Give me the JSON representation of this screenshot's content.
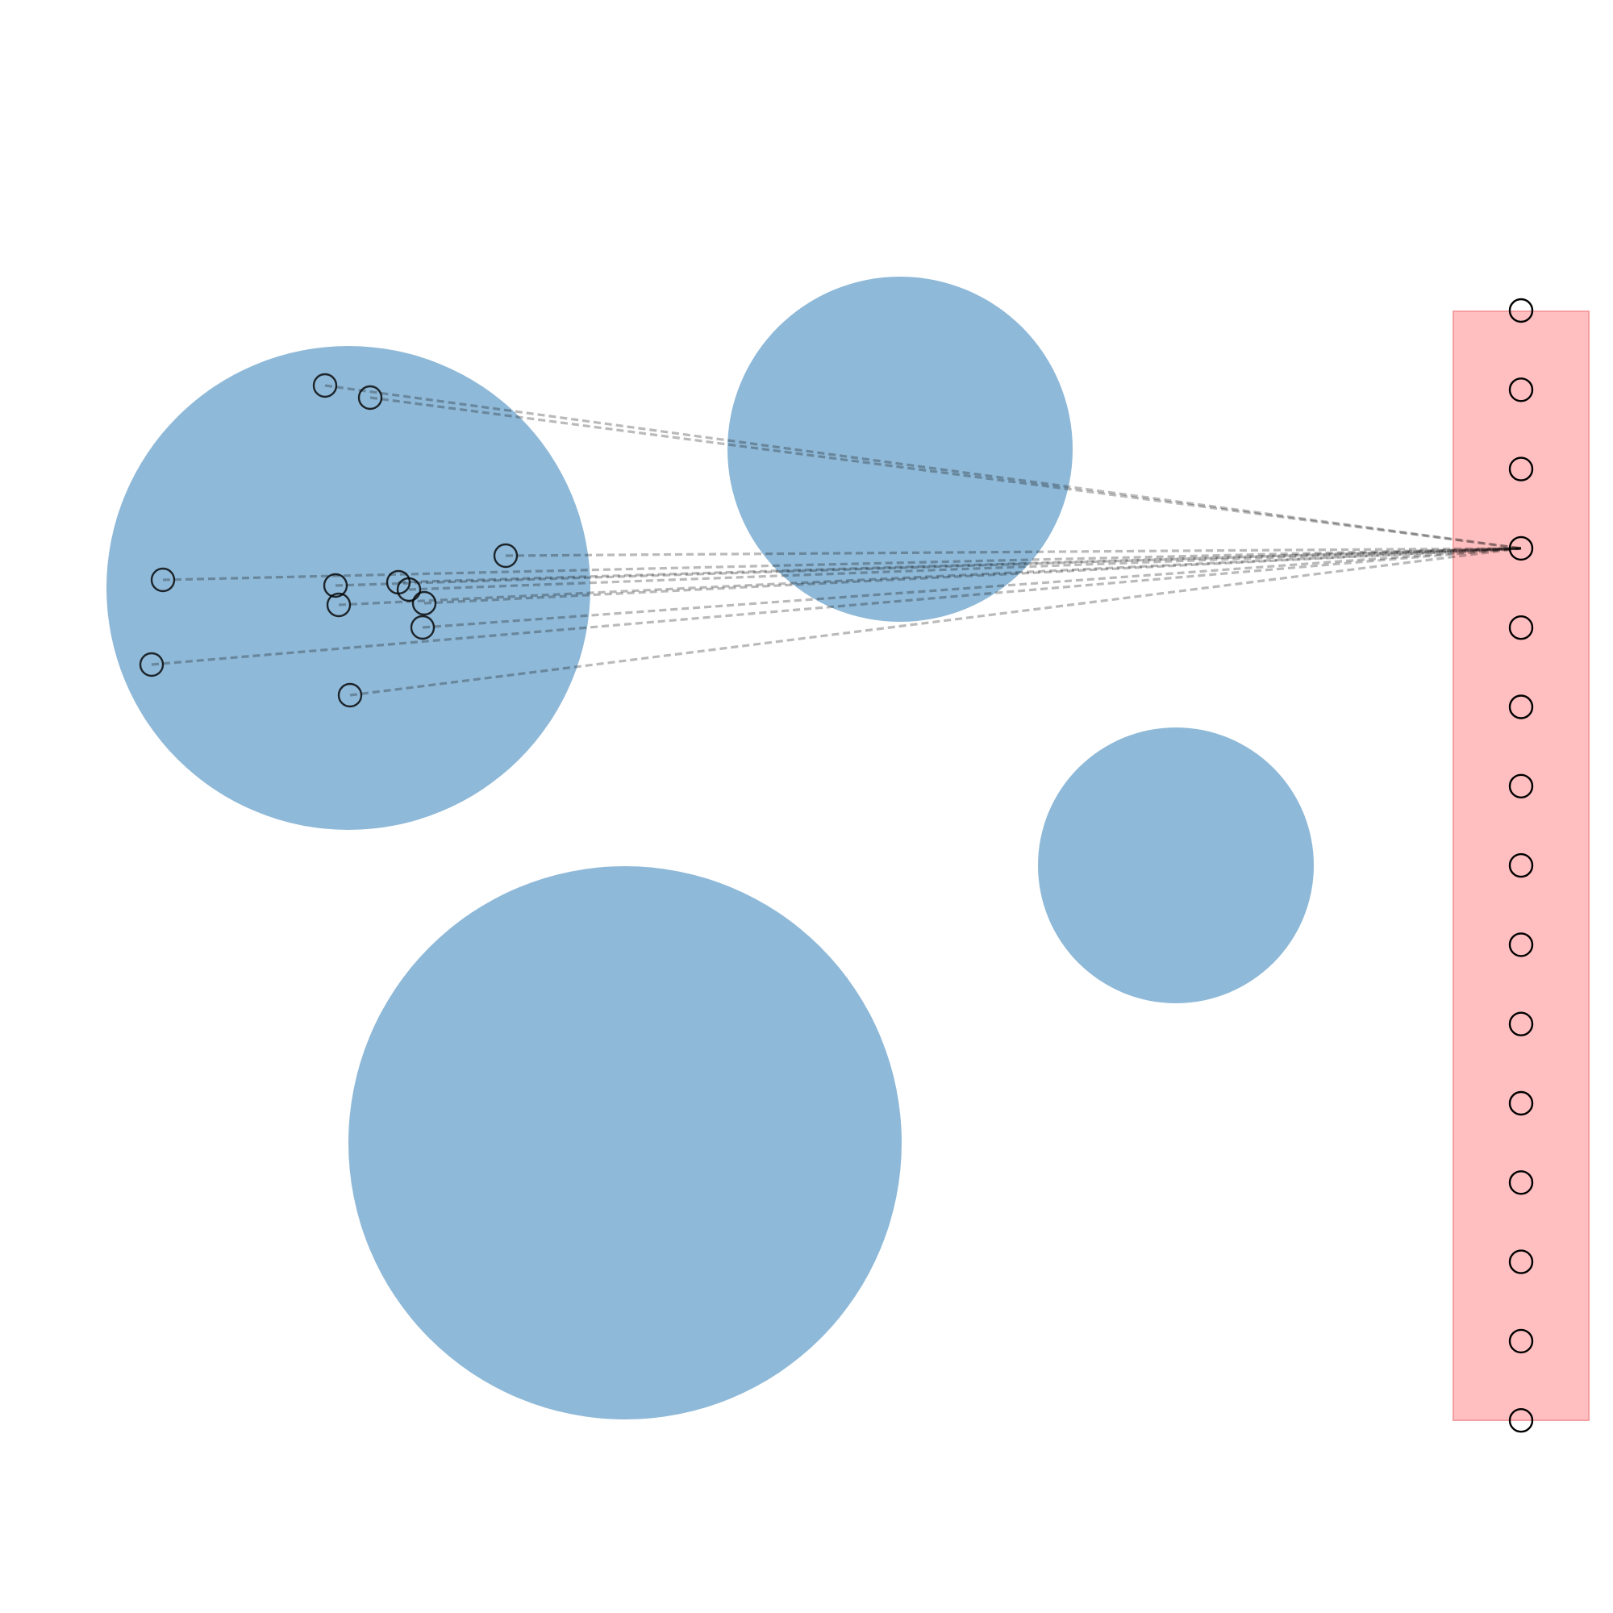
{
  "diagram": {
    "colors": {
      "cluster_fill": "#8fb9d8",
      "column_fill": "#ffbfc0",
      "column_stroke": "#f4a0a2",
      "node_stroke": "#000000",
      "link_stroke": "#000000"
    },
    "clusters": [
      {
        "id": "cluster-1"
      },
      {
        "id": "cluster-2"
      },
      {
        "id": "cluster-3"
      },
      {
        "id": "cluster-4"
      }
    ],
    "column_nodes": [
      {
        "id": "col-1"
      },
      {
        "id": "col-2"
      },
      {
        "id": "col-3"
      },
      {
        "id": "col-4"
      },
      {
        "id": "col-5"
      },
      {
        "id": "col-6"
      },
      {
        "id": "col-7"
      },
      {
        "id": "col-8"
      },
      {
        "id": "col-9"
      },
      {
        "id": "col-10"
      },
      {
        "id": "col-11"
      },
      {
        "id": "col-12"
      },
      {
        "id": "col-13"
      },
      {
        "id": "col-14"
      },
      {
        "id": "col-15"
      }
    ],
    "cluster_nodes": [
      {
        "id": "n1"
      },
      {
        "id": "n2"
      },
      {
        "id": "n3"
      },
      {
        "id": "n4"
      },
      {
        "id": "n5"
      },
      {
        "id": "n6"
      },
      {
        "id": "n7"
      },
      {
        "id": "n8"
      },
      {
        "id": "n9"
      },
      {
        "id": "n10"
      },
      {
        "id": "n11"
      },
      {
        "id": "n12"
      }
    ],
    "link_target": "col-4"
  }
}
